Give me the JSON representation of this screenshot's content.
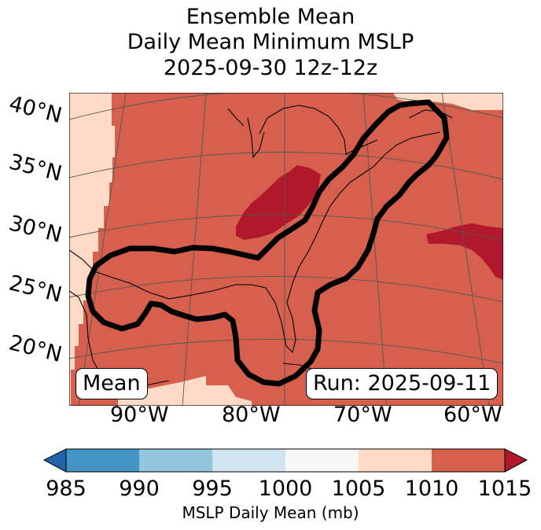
{
  "title": {
    "line1": "Ensemble Mean",
    "line2": "Daily Mean Minimum MSLP",
    "line3": "2025-09-30 12z-12z"
  },
  "map": {
    "lat_labels": [
      "40°N",
      "35°N",
      "30°N",
      "25°N",
      "20°N"
    ],
    "lon_labels": [
      "90°W",
      "80°W",
      "70°W",
      "60°W"
    ],
    "mean_box": "Mean",
    "run_box": "Run: 2025-09-11",
    "colors": {
      "fill_1005_1010": "#fddbc7",
      "fill_1010_1015": "#d6604d",
      "fill_above_1015": "#b2182b",
      "contour": "#000000"
    }
  },
  "colorbar": {
    "ticks": [
      "985",
      "990",
      "995",
      "1000",
      "1005",
      "1010",
      "1015"
    ],
    "label": "MSLP Daily Mean (mb)",
    "colors": [
      "#2166ac",
      "#4393c3",
      "#92c5de",
      "#d1e5f0",
      "#f7f7f7",
      "#fddbc7",
      "#d6604d",
      "#b2182b"
    ]
  }
}
